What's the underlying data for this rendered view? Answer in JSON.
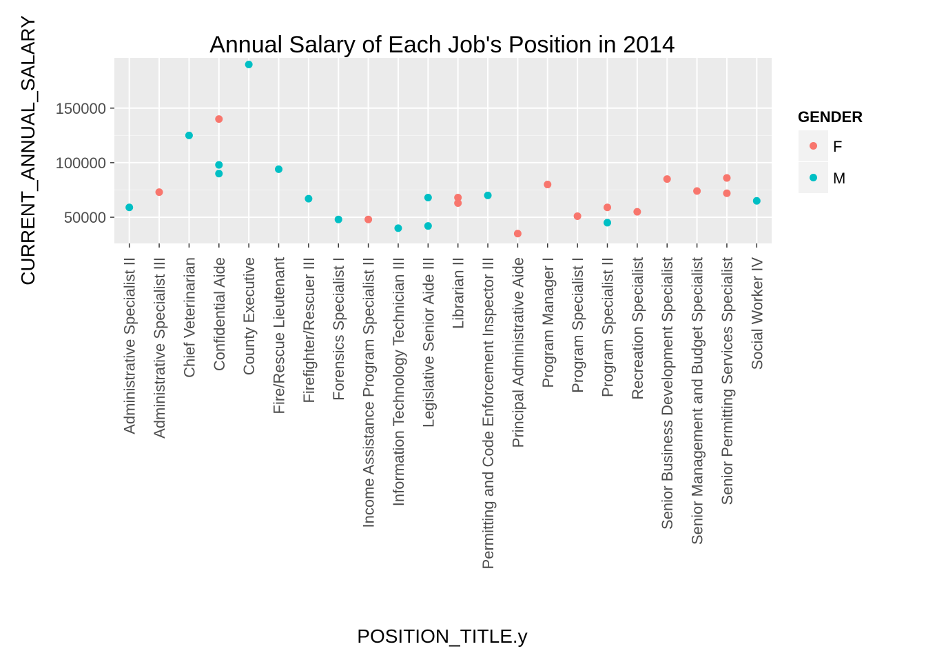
{
  "chart_data": {
    "type": "scatter",
    "title": "Annual Salary of Each Job's Position in 2014",
    "xlabel": "POSITION_TITLE.y",
    "ylabel": "CURRENT_ANNUAL_SALARY",
    "categories": [
      "Administrative Specialist II",
      "Administrative Specialist III",
      "Chief Veterinarian",
      "Confidential Aide",
      "County Executive",
      "Fire/Rescue Lieutenant",
      "Firefighter/Rescuer III",
      "Forensics Specialist I",
      "Income Assistance Program Specialist II",
      "Information Technology Technician III",
      "Legislative Senior Aide III",
      "Librarian II",
      "Permitting and Code Enforcement Inspector III",
      "Principal Administrative Aide",
      "Program Manager I",
      "Program Specialist I",
      "Program Specialist II",
      "Recreation Specialist",
      "Senior Business Development Specialist",
      "Senior Management and Budget Specialist",
      "Senior Permitting Services Specialist",
      "Social Worker IV"
    ],
    "ylim": [
      26000,
      196000
    ],
    "yticks": [
      50000,
      100000,
      150000
    ],
    "ytick_labels": [
      "50000",
      "100000",
      "150000"
    ],
    "grid": true,
    "legend": {
      "title": "GENDER",
      "placement": "right",
      "entries": [
        {
          "label": "F",
          "color": "#f8766d"
        },
        {
          "label": "M",
          "color": "#00bfc4"
        }
      ]
    },
    "series": [
      {
        "name": "F",
        "color": "#f8766d",
        "points": [
          {
            "x": "Administrative Specialist III",
            "y": 73000
          },
          {
            "x": "Confidential Aide",
            "y": 140000
          },
          {
            "x": "Income Assistance Program Specialist II",
            "y": 48000
          },
          {
            "x": "Librarian II",
            "y": 68000
          },
          {
            "x": "Librarian II",
            "y": 63000
          },
          {
            "x": "Principal Administrative Aide",
            "y": 35000
          },
          {
            "x": "Program Manager I",
            "y": 80000
          },
          {
            "x": "Program Specialist I",
            "y": 51000
          },
          {
            "x": "Program Specialist II",
            "y": 59000
          },
          {
            "x": "Recreation Specialist",
            "y": 55000
          },
          {
            "x": "Senior Business Development Specialist",
            "y": 85000
          },
          {
            "x": "Senior Management and Budget Specialist",
            "y": 74000
          },
          {
            "x": "Senior Permitting Services Specialist",
            "y": 86000
          },
          {
            "x": "Senior Permitting Services Specialist",
            "y": 72000
          }
        ]
      },
      {
        "name": "M",
        "color": "#00bfc4",
        "points": [
          {
            "x": "Administrative Specialist II",
            "y": 59000
          },
          {
            "x": "Chief Veterinarian",
            "y": 125000
          },
          {
            "x": "Confidential Aide",
            "y": 98000
          },
          {
            "x": "Confidential Aide",
            "y": 90000
          },
          {
            "x": "County Executive",
            "y": 190000
          },
          {
            "x": "Fire/Rescue Lieutenant",
            "y": 94000
          },
          {
            "x": "Firefighter/Rescuer III",
            "y": 67000
          },
          {
            "x": "Forensics Specialist I",
            "y": 48000
          },
          {
            "x": "Information Technology Technician III",
            "y": 40000
          },
          {
            "x": "Legislative Senior Aide III",
            "y": 68000
          },
          {
            "x": "Legislative Senior Aide III",
            "y": 42000
          },
          {
            "x": "Permitting and Code Enforcement Inspector III",
            "y": 70000
          },
          {
            "x": "Program Specialist II",
            "y": 45000
          },
          {
            "x": "Social Worker IV",
            "y": 65000
          }
        ]
      }
    ]
  }
}
